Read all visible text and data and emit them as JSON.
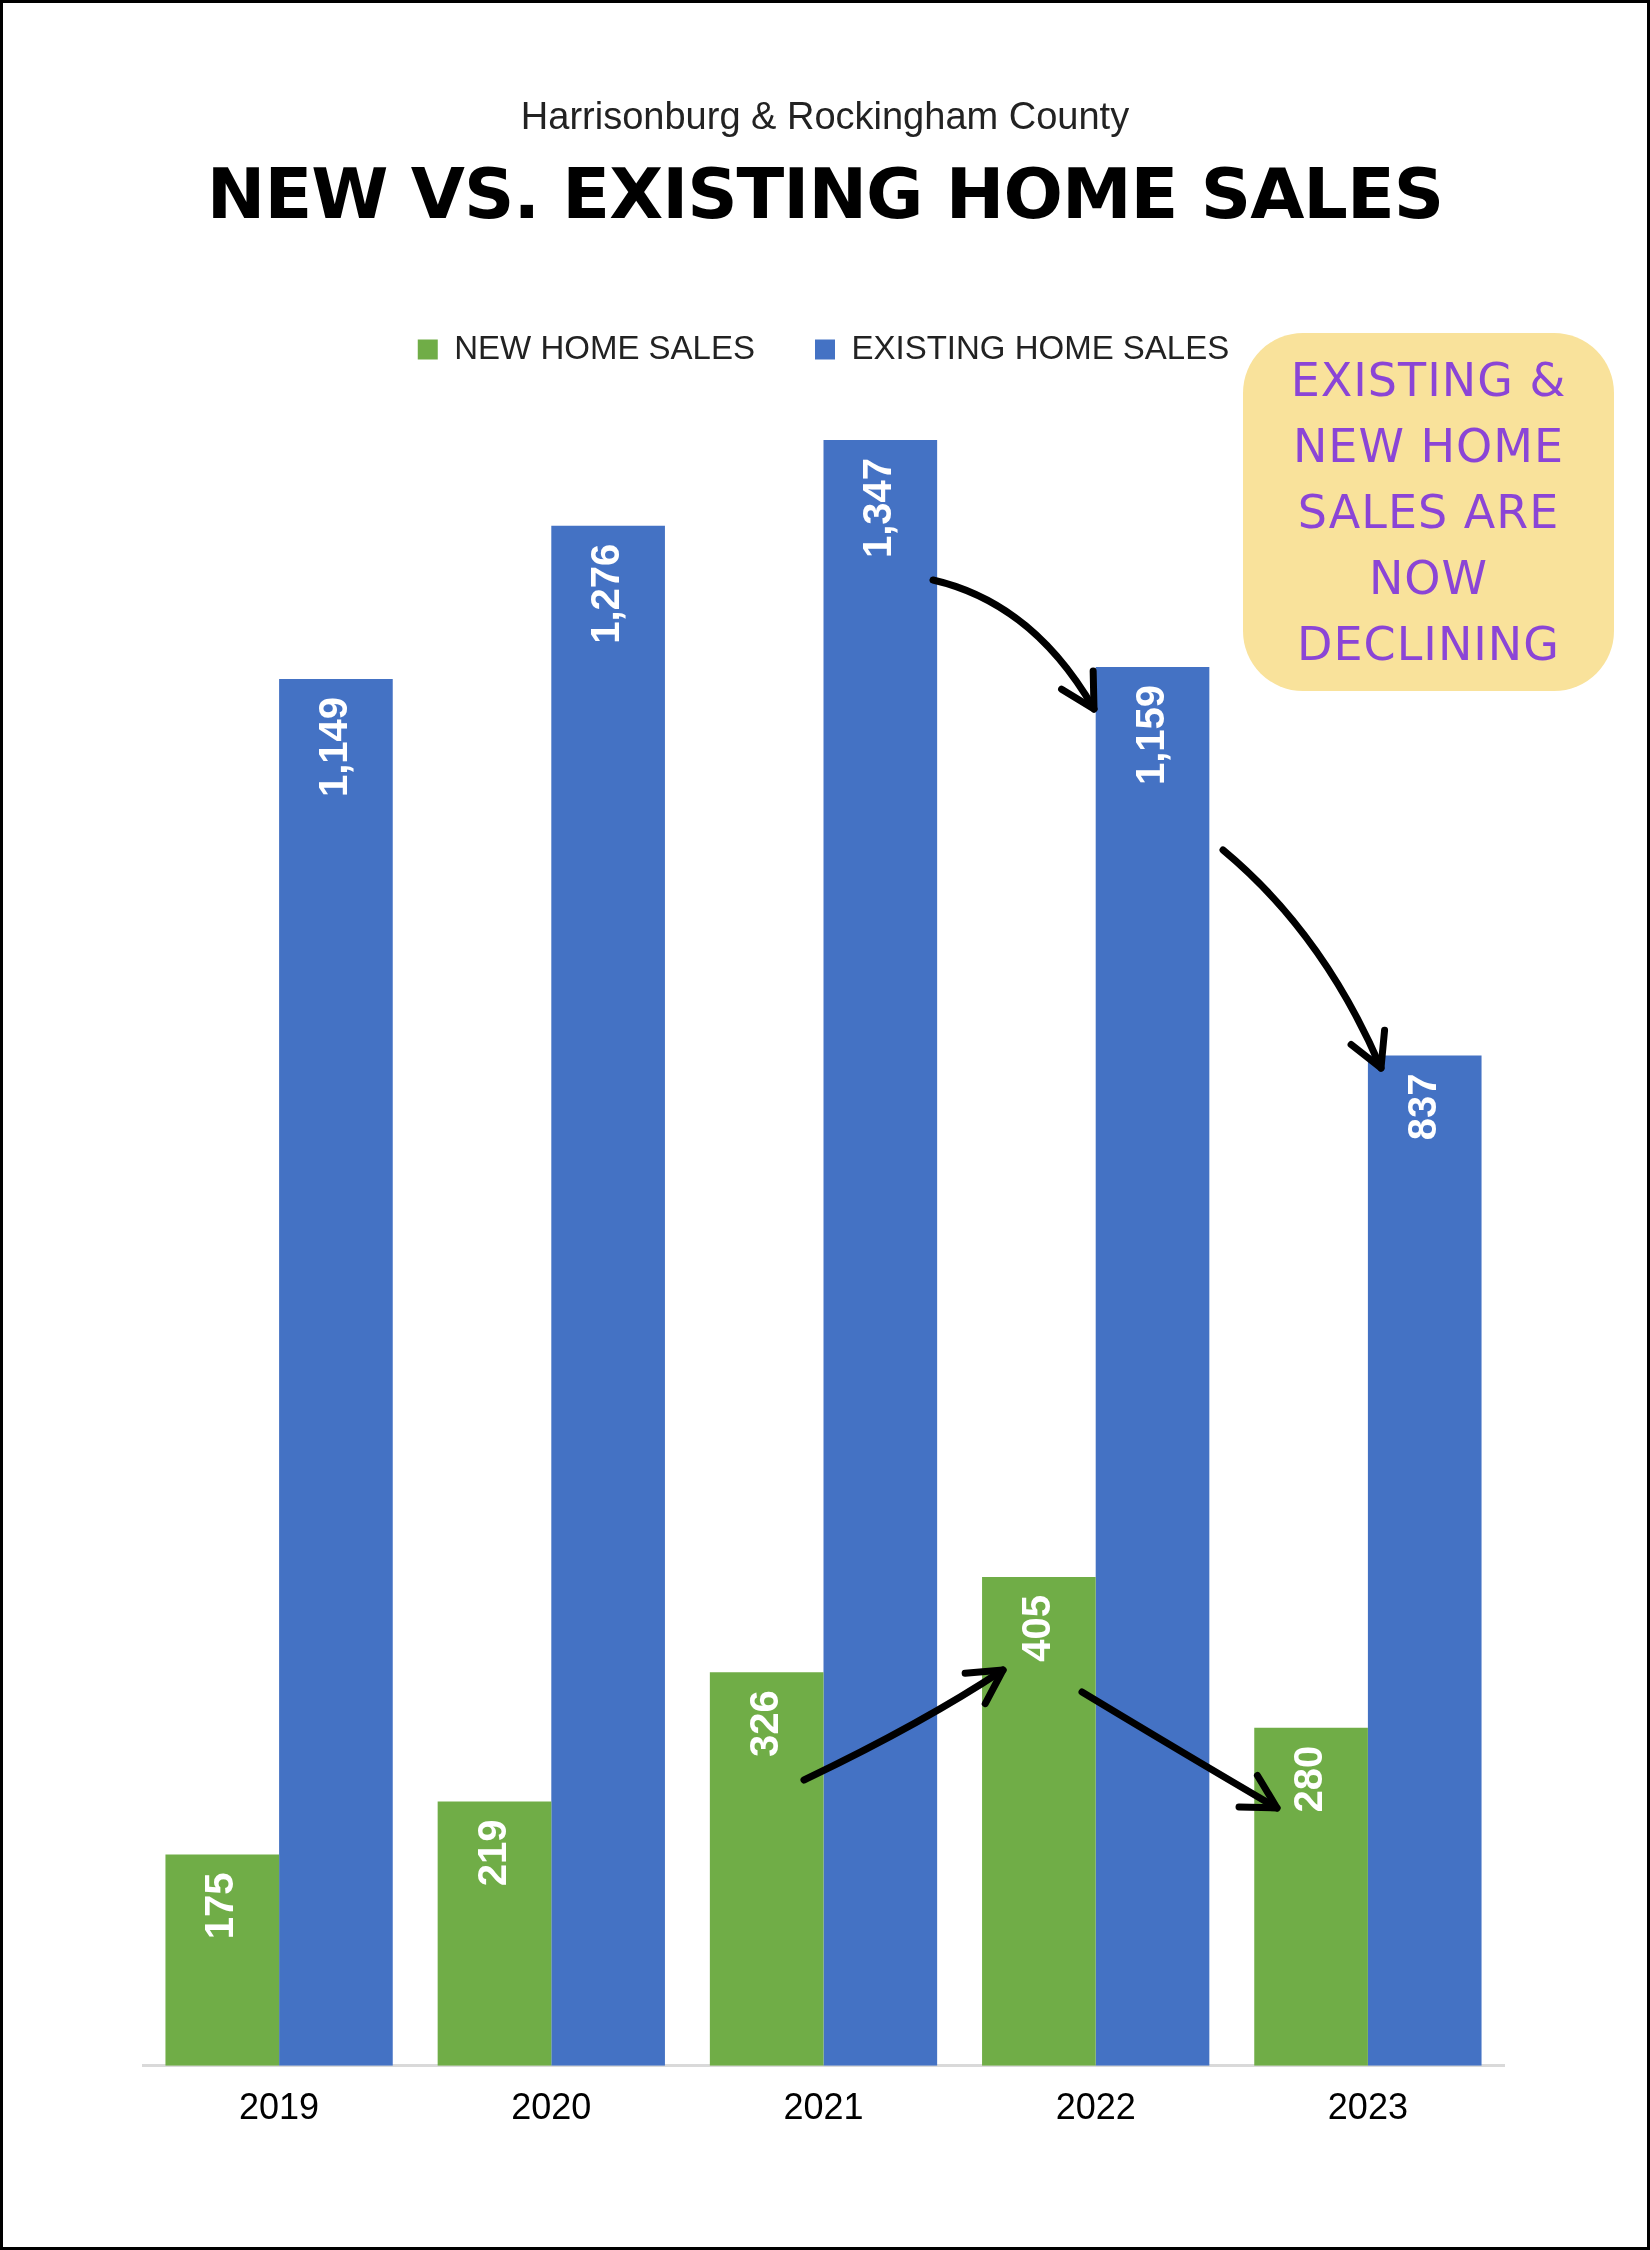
{
  "chart_data": {
    "type": "bar",
    "subtitle": "Harrisonburg & Rockingham County",
    "title": "NEW VS. EXISTING HOME SALES",
    "categories": [
      "2019",
      "2020",
      "2021",
      "2022",
      "2023"
    ],
    "series": [
      {
        "name": "NEW HOME SALES",
        "color": "#70ad47",
        "values": [
          175,
          219,
          326,
          405,
          280
        ],
        "value_labels": [
          "175",
          "219",
          "326",
          "405",
          "280"
        ]
      },
      {
        "name": "EXISTING HOME SALES",
        "color": "#4472c4",
        "values": [
          1149,
          1276,
          1347,
          1159,
          837
        ],
        "value_labels": [
          "1,149",
          "1,276",
          "1,347",
          "1,159",
          "837"
        ]
      }
    ],
    "legend": "top",
    "grid": false,
    "tick_labels": "x",
    "annotations": [
      "EXISTING & NEW HOME SALES ARE NOW DECLINING"
    ]
  }
}
